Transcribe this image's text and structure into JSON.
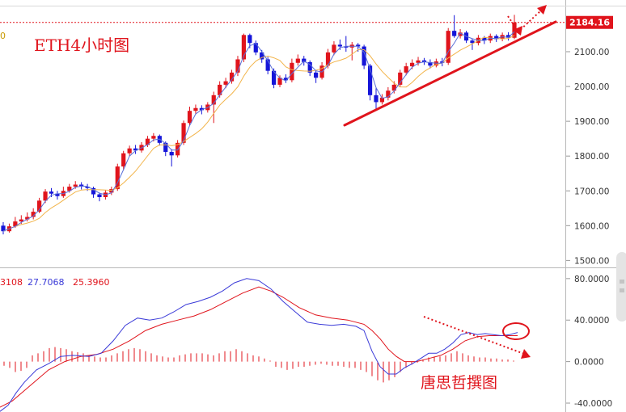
{
  "chart_data": [
    {
      "type": "candlestick",
      "title": "ETH4小时图",
      "partial_header_text": "2184.16",
      "last_price": 2184.16,
      "ylim": [
        1480,
        2230
      ],
      "yticks": [
        {
          "value": 2100,
          "label": "2100.00"
        },
        {
          "value": 2000,
          "label": "2000.00"
        },
        {
          "value": 1900,
          "label": "1900.00"
        },
        {
          "value": 1800,
          "label": "1800.00"
        },
        {
          "value": 1700,
          "label": "1700.00"
        },
        {
          "value": 1600,
          "label": "1600.00"
        },
        {
          "value": 1500,
          "label": "1500.00"
        }
      ],
      "left_edge_label": "0",
      "colors": {
        "up": "#e0141c",
        "down": "#1515d9",
        "ma_fast": "#5a6fd8",
        "ma_slow": "#f2b44a",
        "annotation": "#e0141c"
      },
      "candles": [
        [
          1600,
          1584,
          1610,
          1575
        ],
        [
          1584,
          1598,
          1606,
          1580
        ],
        [
          1598,
          1612,
          1625,
          1594
        ],
        [
          1612,
          1618,
          1630,
          1605
        ],
        [
          1618,
          1625,
          1638,
          1612
        ],
        [
          1625,
          1640,
          1650,
          1618
        ],
        [
          1640,
          1672,
          1680,
          1636
        ],
        [
          1672,
          1698,
          1705,
          1665
        ],
        [
          1698,
          1692,
          1708,
          1682
        ],
        [
          1692,
          1685,
          1700,
          1675
        ],
        [
          1685,
          1700,
          1712,
          1680
        ],
        [
          1700,
          1712,
          1720,
          1695
        ],
        [
          1712,
          1718,
          1728,
          1706
        ],
        [
          1718,
          1712,
          1725,
          1704
        ],
        [
          1712,
          1708,
          1720,
          1700
        ],
        [
          1708,
          1690,
          1712,
          1680
        ],
        [
          1690,
          1682,
          1695,
          1670
        ],
        [
          1682,
          1695,
          1702,
          1675
        ],
        [
          1695,
          1705,
          1712,
          1688
        ],
        [
          1705,
          1770,
          1778,
          1700
        ],
        [
          1770,
          1808,
          1815,
          1760
        ],
        [
          1808,
          1822,
          1830,
          1800
        ],
        [
          1822,
          1816,
          1832,
          1806
        ],
        [
          1816,
          1832,
          1840,
          1810
        ],
        [
          1832,
          1850,
          1858,
          1826
        ],
        [
          1850,
          1858,
          1866,
          1842
        ],
        [
          1858,
          1838,
          1862,
          1830
        ],
        [
          1838,
          1812,
          1842,
          1800
        ],
        [
          1812,
          1802,
          1820,
          1770
        ],
        [
          1802,
          1838,
          1846,
          1796
        ],
        [
          1838,
          1895,
          1902,
          1832
        ],
        [
          1895,
          1930,
          1942,
          1888
        ],
        [
          1930,
          1938,
          1948,
          1922
        ],
        [
          1938,
          1932,
          1946,
          1920
        ],
        [
          1932,
          1948,
          1955,
          1925
        ],
        [
          1948,
          1975,
          1985,
          1895
        ],
        [
          1975,
          2005,
          2015,
          1968
        ],
        [
          2005,
          2015,
          2025,
          1995
        ],
        [
          2015,
          2040,
          2048,
          2008
        ],
        [
          2040,
          2078,
          2088,
          2030
        ],
        [
          2078,
          2148,
          2152,
          2070
        ],
        [
          2148,
          2125,
          2152,
          2110
        ],
        [
          2125,
          2098,
          2132,
          2090
        ],
        [
          2098,
          2078,
          2105,
          2068
        ],
        [
          2078,
          2045,
          2085,
          2035
        ],
        [
          2045,
          2005,
          2052,
          1995
        ],
        [
          2005,
          2025,
          2032,
          1998
        ],
        [
          2025,
          2018,
          2035,
          2010
        ],
        [
          2018,
          2068,
          2080,
          2012
        ],
        [
          2068,
          2080,
          2092,
          2060
        ],
        [
          2080,
          2070,
          2088,
          2060
        ],
        [
          2070,
          2040,
          2075,
          2030
        ],
        [
          2040,
          2025,
          2048,
          2010
        ],
        [
          2025,
          2060,
          2070,
          2020
        ],
        [
          2060,
          2098,
          2108,
          2052
        ],
        [
          2098,
          2120,
          2130,
          2090
        ],
        [
          2120,
          2115,
          2135,
          2105
        ],
        [
          2115,
          2112,
          2145,
          2100
        ],
        [
          2112,
          2120,
          2128,
          2075
        ],
        [
          2120,
          2115,
          2125,
          2100
        ],
        [
          2115,
          2060,
          2120,
          2050
        ],
        [
          2060,
          1975,
          2065,
          1960
        ],
        [
          1975,
          1955,
          1995,
          1930
        ],
        [
          1955,
          1968,
          1978,
          1948
        ],
        [
          1968,
          1988,
          1998,
          1960
        ],
        [
          1988,
          2005,
          2015,
          1980
        ],
        [
          2005,
          2040,
          2048,
          1998
        ],
        [
          2040,
          2058,
          2068,
          2032
        ],
        [
          2058,
          2068,
          2078,
          2050
        ],
        [
          2068,
          2075,
          2085,
          2060
        ],
        [
          2075,
          2070,
          2082,
          2062
        ],
        [
          2070,
          2060,
          2078,
          2052
        ],
        [
          2060,
          2072,
          2080,
          2055
        ],
        [
          2072,
          2068,
          2082,
          2058
        ],
        [
          2068,
          2160,
          2168,
          2062
        ],
        [
          2160,
          2145,
          2205,
          2140
        ],
        [
          2145,
          2155,
          2165,
          2138
        ],
        [
          2155,
          2132,
          2160,
          2125
        ],
        [
          2132,
          2125,
          2138,
          2105
        ],
        [
          2125,
          2140,
          2148,
          2118
        ],
        [
          2140,
          2132,
          2145,
          2122
        ],
        [
          2132,
          2145,
          2152,
          2125
        ],
        [
          2145,
          2136,
          2150,
          2128
        ],
        [
          2136,
          2148,
          2155,
          2130
        ],
        [
          2148,
          2140,
          2156,
          2132
        ],
        [
          2140,
          2184.16,
          2206,
          2136
        ]
      ]
    },
    {
      "type": "macd",
      "legend": [
        {
          "label": "3108",
          "color": "#e0141c"
        },
        {
          "label": "27.7068",
          "color": "#3a3ad8"
        },
        {
          "label": "25.3960",
          "color": "#e0141c"
        }
      ],
      "ylim": [
        -47,
        90
      ],
      "yticks": [
        {
          "value": 80,
          "label": "80.0000"
        },
        {
          "value": 40,
          "label": "40.0000"
        },
        {
          "value": 0,
          "label": "0.0000"
        },
        {
          "value": -40,
          "label": "-40.0000"
        }
      ],
      "dif": [
        [
          0,
          -48
        ],
        [
          10,
          -42
        ],
        [
          20,
          -30
        ],
        [
          30,
          -20
        ],
        [
          45,
          -8
        ],
        [
          60,
          -2
        ],
        [
          75,
          5
        ],
        [
          90,
          6
        ],
        [
          110,
          5
        ],
        [
          125,
          8
        ],
        [
          140,
          20
        ],
        [
          155,
          35
        ],
        [
          170,
          42
        ],
        [
          185,
          40
        ],
        [
          200,
          42
        ],
        [
          215,
          48
        ],
        [
          230,
          55
        ],
        [
          245,
          58
        ],
        [
          260,
          62
        ],
        [
          275,
          68
        ],
        [
          290,
          76
        ],
        [
          305,
          80
        ],
        [
          320,
          78
        ],
        [
          335,
          70
        ],
        [
          350,
          58
        ],
        [
          365,
          48
        ],
        [
          380,
          38
        ],
        [
          395,
          36
        ],
        [
          410,
          35
        ],
        [
          425,
          36
        ],
        [
          440,
          34
        ],
        [
          450,
          30
        ],
        [
          460,
          10
        ],
        [
          470,
          -5
        ],
        [
          480,
          -12
        ],
        [
          490,
          -12
        ],
        [
          500,
          -6
        ],
        [
          510,
          -2
        ],
        [
          520,
          3
        ],
        [
          530,
          8
        ],
        [
          540,
          8
        ],
        [
          550,
          12
        ],
        [
          560,
          18
        ],
        [
          570,
          26
        ],
        [
          580,
          28
        ],
        [
          590,
          26
        ],
        [
          600,
          27
        ],
        [
          610,
          26
        ],
        [
          620,
          25
        ],
        [
          630,
          26
        ],
        [
          640,
          28
        ]
      ],
      "dea": [
        [
          0,
          -44
        ],
        [
          15,
          -38
        ],
        [
          30,
          -28
        ],
        [
          45,
          -18
        ],
        [
          60,
          -8
        ],
        [
          80,
          0
        ],
        [
          100,
          5
        ],
        [
          120,
          7
        ],
        [
          140,
          12
        ],
        [
          160,
          20
        ],
        [
          180,
          30
        ],
        [
          200,
          36
        ],
        [
          220,
          40
        ],
        [
          240,
          44
        ],
        [
          260,
          50
        ],
        [
          280,
          58
        ],
        [
          300,
          66
        ],
        [
          320,
          72
        ],
        [
          335,
          68
        ],
        [
          350,
          62
        ],
        [
          370,
          52
        ],
        [
          390,
          45
        ],
        [
          410,
          42
        ],
        [
          430,
          40
        ],
        [
          450,
          36
        ],
        [
          460,
          30
        ],
        [
          470,
          22
        ],
        [
          480,
          12
        ],
        [
          490,
          5
        ],
        [
          500,
          0
        ],
        [
          515,
          0
        ],
        [
          530,
          3
        ],
        [
          545,
          6
        ],
        [
          560,
          12
        ],
        [
          575,
          20
        ],
        [
          590,
          24
        ],
        [
          605,
          25
        ],
        [
          620,
          25
        ],
        [
          640,
          25
        ]
      ],
      "histogram": [
        [
          5,
          -4
        ],
        [
          12,
          -6
        ],
        [
          19,
          -10
        ],
        [
          26,
          -9
        ],
        [
          33,
          -6
        ],
        [
          40,
          6
        ],
        [
          47,
          8
        ],
        [
          54,
          10
        ],
        [
          61,
          13
        ],
        [
          68,
          14
        ],
        [
          75,
          13
        ],
        [
          82,
          12
        ],
        [
          89,
          10
        ],
        [
          96,
          9
        ],
        [
          103,
          8
        ],
        [
          110,
          6
        ],
        [
          117,
          5
        ],
        [
          124,
          4
        ],
        [
          131,
          4
        ],
        [
          138,
          6
        ],
        [
          145,
          8
        ],
        [
          152,
          10
        ],
        [
          159,
          12
        ],
        [
          166,
          13
        ],
        [
          173,
          12
        ],
        [
          180,
          10
        ],
        [
          187,
          8
        ],
        [
          194,
          6
        ],
        [
          201,
          5
        ],
        [
          208,
          4
        ],
        [
          215,
          4
        ],
        [
          222,
          6
        ],
        [
          229,
          7
        ],
        [
          236,
          8
        ],
        [
          243,
          8
        ],
        [
          250,
          8
        ],
        [
          257,
          7
        ],
        [
          264,
          6
        ],
        [
          271,
          8
        ],
        [
          278,
          10
        ],
        [
          285,
          10
        ],
        [
          292,
          12
        ],
        [
          299,
          10
        ],
        [
          306,
          8
        ],
        [
          313,
          6
        ],
        [
          320,
          5
        ],
        [
          327,
          3
        ],
        [
          334,
          1
        ],
        [
          341,
          -5
        ],
        [
          348,
          -6
        ],
        [
          355,
          -8
        ],
        [
          362,
          -7
        ],
        [
          369,
          -5
        ],
        [
          376,
          -5
        ],
        [
          383,
          -4
        ],
        [
          390,
          -3
        ],
        [
          397,
          -2
        ],
        [
          404,
          -3
        ],
        [
          411,
          -4
        ],
        [
          418,
          -4
        ],
        [
          425,
          -5
        ],
        [
          432,
          -6
        ],
        [
          439,
          -6
        ],
        [
          446,
          -8
        ],
        [
          453,
          -10
        ],
        [
          460,
          -14
        ],
        [
          467,
          -18
        ],
        [
          474,
          -20
        ],
        [
          481,
          -18
        ],
        [
          488,
          -15
        ],
        [
          495,
          -10
        ],
        [
          502,
          -6
        ],
        [
          509,
          -3
        ],
        [
          516,
          -1
        ],
        [
          523,
          2
        ],
        [
          530,
          4
        ],
        [
          537,
          5
        ],
        [
          544,
          5
        ],
        [
          551,
          6
        ],
        [
          558,
          8
        ],
        [
          565,
          10
        ],
        [
          572,
          8
        ],
        [
          579,
          6
        ],
        [
          586,
          5
        ],
        [
          593,
          4
        ],
        [
          600,
          4
        ],
        [
          607,
          3
        ],
        [
          614,
          3
        ],
        [
          621,
          2
        ],
        [
          628,
          2
        ],
        [
          635,
          1
        ]
      ]
    }
  ],
  "annotations": {
    "watermark": "唐思哲撰图"
  }
}
